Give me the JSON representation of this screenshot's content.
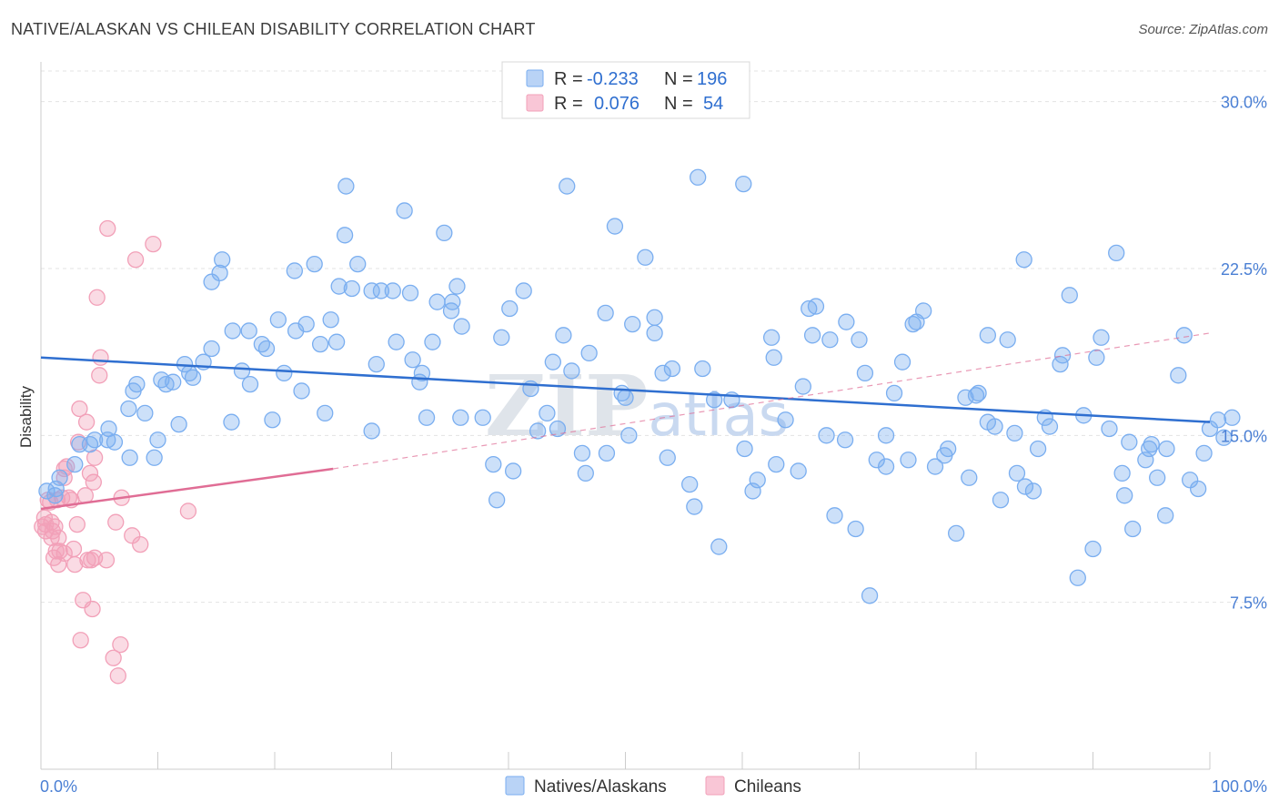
{
  "title": "NATIVE/ALASKAN VS CHILEAN DISABILITY CORRELATION CHART",
  "source": "Source: ZipAtlas.com",
  "watermark": "ZIPatlas",
  "legend": {
    "r_label": "R =",
    "n_label": "N =",
    "rows": [
      {
        "r": "-0.233",
        "n": "196",
        "color": "#7aaef0"
      },
      {
        "r": "0.076",
        "n": "54",
        "color": "#f2a0b8"
      }
    ]
  },
  "bottom_legend": [
    "Natives/Alaskans",
    "Chileans"
  ],
  "chart_data": {
    "type": "scatter",
    "ylabel": "Disability",
    "xlim": [
      0,
      100
    ],
    "ylim": [
      0,
      31.5
    ],
    "x_tick_labels": [
      "0.0%",
      "100.0%"
    ],
    "y_ticks": [
      7.5,
      15.0,
      22.5,
      30.0
    ],
    "y_tick_labels": [
      "7.5%",
      "15.0%",
      "22.5%",
      "30.0%"
    ],
    "grid": true,
    "colors": {
      "natives": "#7aaef0",
      "natives_line": "#2f6fd0",
      "chileans": "#f2a0b8",
      "chileans_line": "#e06d95"
    },
    "series": [
      {
        "name": "Natives/Alaskans",
        "trend": {
          "x0": 0,
          "y0": 18.5,
          "x1": 100,
          "y1": 15.6
        },
        "points": [
          [
            0.5,
            12.5
          ],
          [
            1.3,
            12.6
          ],
          [
            1.6,
            13.1
          ],
          [
            1.2,
            12.3
          ],
          [
            2.9,
            13.7
          ],
          [
            3.3,
            14.6
          ],
          [
            4.2,
            14.6
          ],
          [
            4.6,
            14.8
          ],
          [
            5.7,
            14.8
          ],
          [
            5.8,
            15.3
          ],
          [
            6.3,
            14.7
          ],
          [
            7.5,
            16.2
          ],
          [
            7.6,
            14.0
          ],
          [
            7.9,
            17.0
          ],
          [
            8.2,
            17.3
          ],
          [
            8.9,
            16.0
          ],
          [
            9.7,
            14.0
          ],
          [
            10.0,
            14.8
          ],
          [
            10.3,
            17.5
          ],
          [
            10.7,
            17.3
          ],
          [
            11.3,
            17.4
          ],
          [
            11.8,
            15.5
          ],
          [
            12.3,
            18.2
          ],
          [
            12.7,
            17.8
          ],
          [
            13.0,
            17.6
          ],
          [
            13.9,
            18.3
          ],
          [
            14.6,
            18.9
          ],
          [
            15.3,
            22.3
          ],
          [
            15.5,
            22.9
          ],
          [
            14.6,
            21.9
          ],
          [
            16.4,
            19.7
          ],
          [
            16.3,
            15.6
          ],
          [
            17.2,
            17.9
          ],
          [
            17.9,
            17.3
          ],
          [
            17.8,
            19.7
          ],
          [
            18.9,
            19.1
          ],
          [
            19.3,
            18.9
          ],
          [
            19.8,
            15.7
          ],
          [
            20.3,
            20.2
          ],
          [
            20.8,
            17.8
          ],
          [
            21.7,
            22.4
          ],
          [
            21.8,
            19.7
          ],
          [
            22.3,
            17.0
          ],
          [
            22.7,
            20.0
          ],
          [
            23.4,
            22.7
          ],
          [
            23.9,
            19.1
          ],
          [
            24.3,
            16.0
          ],
          [
            24.8,
            20.2
          ],
          [
            25.3,
            19.2
          ],
          [
            25.5,
            21.7
          ],
          [
            26.1,
            26.2
          ],
          [
            26.6,
            21.6
          ],
          [
            27.1,
            22.7
          ],
          [
            26.0,
            24.0
          ],
          [
            28.3,
            21.5
          ],
          [
            28.3,
            15.2
          ],
          [
            28.7,
            18.2
          ],
          [
            29.1,
            21.5
          ],
          [
            30.1,
            21.5
          ],
          [
            30.4,
            19.2
          ],
          [
            31.1,
            25.1
          ],
          [
            31.6,
            21.4
          ],
          [
            31.8,
            18.4
          ],
          [
            32.4,
            17.4
          ],
          [
            32.6,
            17.8
          ],
          [
            33.0,
            15.8
          ],
          [
            33.5,
            19.2
          ],
          [
            33.9,
            21.0
          ],
          [
            34.5,
            24.1
          ],
          [
            35.1,
            20.6
          ],
          [
            35.2,
            21.0
          ],
          [
            35.6,
            21.7
          ],
          [
            36.0,
            19.9
          ],
          [
            35.9,
            15.8
          ],
          [
            37.8,
            15.8
          ],
          [
            38.7,
            13.7
          ],
          [
            39.0,
            12.1
          ],
          [
            39.4,
            19.4
          ],
          [
            40.1,
            20.7
          ],
          [
            40.4,
            13.4
          ],
          [
            41.3,
            21.5
          ],
          [
            41.9,
            17.1
          ],
          [
            42.5,
            15.2
          ],
          [
            43.3,
            16.0
          ],
          [
            43.8,
            18.3
          ],
          [
            44.2,
            15.3
          ],
          [
            44.7,
            19.5
          ],
          [
            45.0,
            26.2
          ],
          [
            45.4,
            17.9
          ],
          [
            46.3,
            14.2
          ],
          [
            46.6,
            13.3
          ],
          [
            46.9,
            18.7
          ],
          [
            48.3,
            20.5
          ],
          [
            48.4,
            14.2
          ],
          [
            49.1,
            24.4
          ],
          [
            49.7,
            16.9
          ],
          [
            50.0,
            16.7
          ],
          [
            50.3,
            15.0
          ],
          [
            50.6,
            20.0
          ],
          [
            51.7,
            23.0
          ],
          [
            52.5,
            19.6
          ],
          [
            52.5,
            20.3
          ],
          [
            53.2,
            17.8
          ],
          [
            53.6,
            14.0
          ],
          [
            54.0,
            18.0
          ],
          [
            55.5,
            12.8
          ],
          [
            55.9,
            11.8
          ],
          [
            56.2,
            26.6
          ],
          [
            56.6,
            18.0
          ],
          [
            57.6,
            16.6
          ],
          [
            58.0,
            10.0
          ],
          [
            59.1,
            16.6
          ],
          [
            60.1,
            26.3
          ],
          [
            60.2,
            14.4
          ],
          [
            60.9,
            12.5
          ],
          [
            61.3,
            13.0
          ],
          [
            62.5,
            19.4
          ],
          [
            62.7,
            18.5
          ],
          [
            62.9,
            13.7
          ],
          [
            63.7,
            15.7
          ],
          [
            64.8,
            13.4
          ],
          [
            65.2,
            17.2
          ],
          [
            65.7,
            20.7
          ],
          [
            66.0,
            19.5
          ],
          [
            66.3,
            20.8
          ],
          [
            67.2,
            15.0
          ],
          [
            67.5,
            19.3
          ],
          [
            67.9,
            11.4
          ],
          [
            68.8,
            14.8
          ],
          [
            68.9,
            20.1
          ],
          [
            69.7,
            10.8
          ],
          [
            70.0,
            19.3
          ],
          [
            70.5,
            17.8
          ],
          [
            70.9,
            7.8
          ],
          [
            71.5,
            13.9
          ],
          [
            72.3,
            15.0
          ],
          [
            72.3,
            13.6
          ],
          [
            73.0,
            16.9
          ],
          [
            73.7,
            18.3
          ],
          [
            74.2,
            13.9
          ],
          [
            74.6,
            20.0
          ],
          [
            74.9,
            20.1
          ],
          [
            75.5,
            20.6
          ],
          [
            76.5,
            13.6
          ],
          [
            77.3,
            14.1
          ],
          [
            77.6,
            14.4
          ],
          [
            78.3,
            10.6
          ],
          [
            79.1,
            16.7
          ],
          [
            79.4,
            13.1
          ],
          [
            80.0,
            16.8
          ],
          [
            80.2,
            16.9
          ],
          [
            81.0,
            19.5
          ],
          [
            81.0,
            15.6
          ],
          [
            81.6,
            15.4
          ],
          [
            82.1,
            12.1
          ],
          [
            82.7,
            19.3
          ],
          [
            83.3,
            15.1
          ],
          [
            83.5,
            13.3
          ],
          [
            84.1,
            22.9
          ],
          [
            84.2,
            12.7
          ],
          [
            84.9,
            12.5
          ],
          [
            85.3,
            14.4
          ],
          [
            85.9,
            15.8
          ],
          [
            86.3,
            15.4
          ],
          [
            87.2,
            18.2
          ],
          [
            87.4,
            18.6
          ],
          [
            88.0,
            21.3
          ],
          [
            88.7,
            8.6
          ],
          [
            89.2,
            15.9
          ],
          [
            90.0,
            9.9
          ],
          [
            90.3,
            18.5
          ],
          [
            90.7,
            19.4
          ],
          [
            91.4,
            15.3
          ],
          [
            92.0,
            23.2
          ],
          [
            92.5,
            13.3
          ],
          [
            92.7,
            12.3
          ],
          [
            93.1,
            14.7
          ],
          [
            93.4,
            10.8
          ],
          [
            94.5,
            13.9
          ],
          [
            94.8,
            14.4
          ],
          [
            95.0,
            14.6
          ],
          [
            95.5,
            13.1
          ],
          [
            96.2,
            11.4
          ],
          [
            96.3,
            14.4
          ],
          [
            97.3,
            17.7
          ],
          [
            97.8,
            19.5
          ],
          [
            98.3,
            13.0
          ],
          [
            99.0,
            12.6
          ],
          [
            99.5,
            14.2
          ],
          [
            100.0,
            15.3
          ],
          [
            100.7,
            15.7
          ],
          [
            101.2,
            14.9
          ],
          [
            101.9,
            15.8
          ]
        ]
      },
      {
        "name": "Chileans",
        "trend": {
          "x0": 0,
          "y0": 11.7,
          "x1": 25,
          "y1": 13.5
        },
        "trend_ext": {
          "x0": 25,
          "y0": 13.5,
          "x1": 100,
          "y1": 19.6
        },
        "points": [
          [
            0.1,
            10.9
          ],
          [
            0.3,
            11.3
          ],
          [
            0.4,
            10.7
          ],
          [
            0.4,
            11.0
          ],
          [
            0.6,
            12.1
          ],
          [
            0.8,
            12.0
          ],
          [
            0.9,
            10.4
          ],
          [
            0.9,
            11.1
          ],
          [
            1.0,
            10.7
          ],
          [
            1.1,
            9.5
          ],
          [
            1.2,
            10.9
          ],
          [
            1.3,
            9.8
          ],
          [
            1.4,
            12.1
          ],
          [
            1.5,
            10.4
          ],
          [
            1.5,
            9.2
          ],
          [
            1.6,
            9.8
          ],
          [
            1.8,
            12.2
          ],
          [
            2.0,
            13.1
          ],
          [
            2.0,
            13.5
          ],
          [
            2.0,
            9.7
          ],
          [
            2.2,
            13.6
          ],
          [
            2.4,
            12.2
          ],
          [
            2.6,
            12.1
          ],
          [
            2.8,
            9.9
          ],
          [
            2.9,
            9.2
          ],
          [
            3.1,
            11.0
          ],
          [
            3.2,
            14.7
          ],
          [
            3.3,
            16.2
          ],
          [
            3.4,
            5.8
          ],
          [
            3.6,
            7.6
          ],
          [
            3.8,
            12.3
          ],
          [
            3.9,
            15.6
          ],
          [
            4.0,
            9.4
          ],
          [
            4.2,
            13.3
          ],
          [
            4.3,
            9.4
          ],
          [
            4.4,
            7.2
          ],
          [
            4.5,
            12.9
          ],
          [
            4.6,
            9.5
          ],
          [
            4.8,
            21.2
          ],
          [
            4.6,
            14.0
          ],
          [
            5.0,
            17.7
          ],
          [
            5.1,
            18.5
          ],
          [
            5.6,
            9.4
          ],
          [
            5.7,
            24.3
          ],
          [
            6.2,
            5.0
          ],
          [
            6.4,
            11.1
          ],
          [
            6.6,
            4.2
          ],
          [
            6.8,
            5.6
          ],
          [
            6.9,
            12.2
          ],
          [
            7.8,
            10.5
          ],
          [
            8.1,
            22.9
          ],
          [
            8.5,
            10.1
          ],
          [
            9.6,
            23.6
          ],
          [
            12.6,
            11.6
          ]
        ]
      }
    ]
  }
}
